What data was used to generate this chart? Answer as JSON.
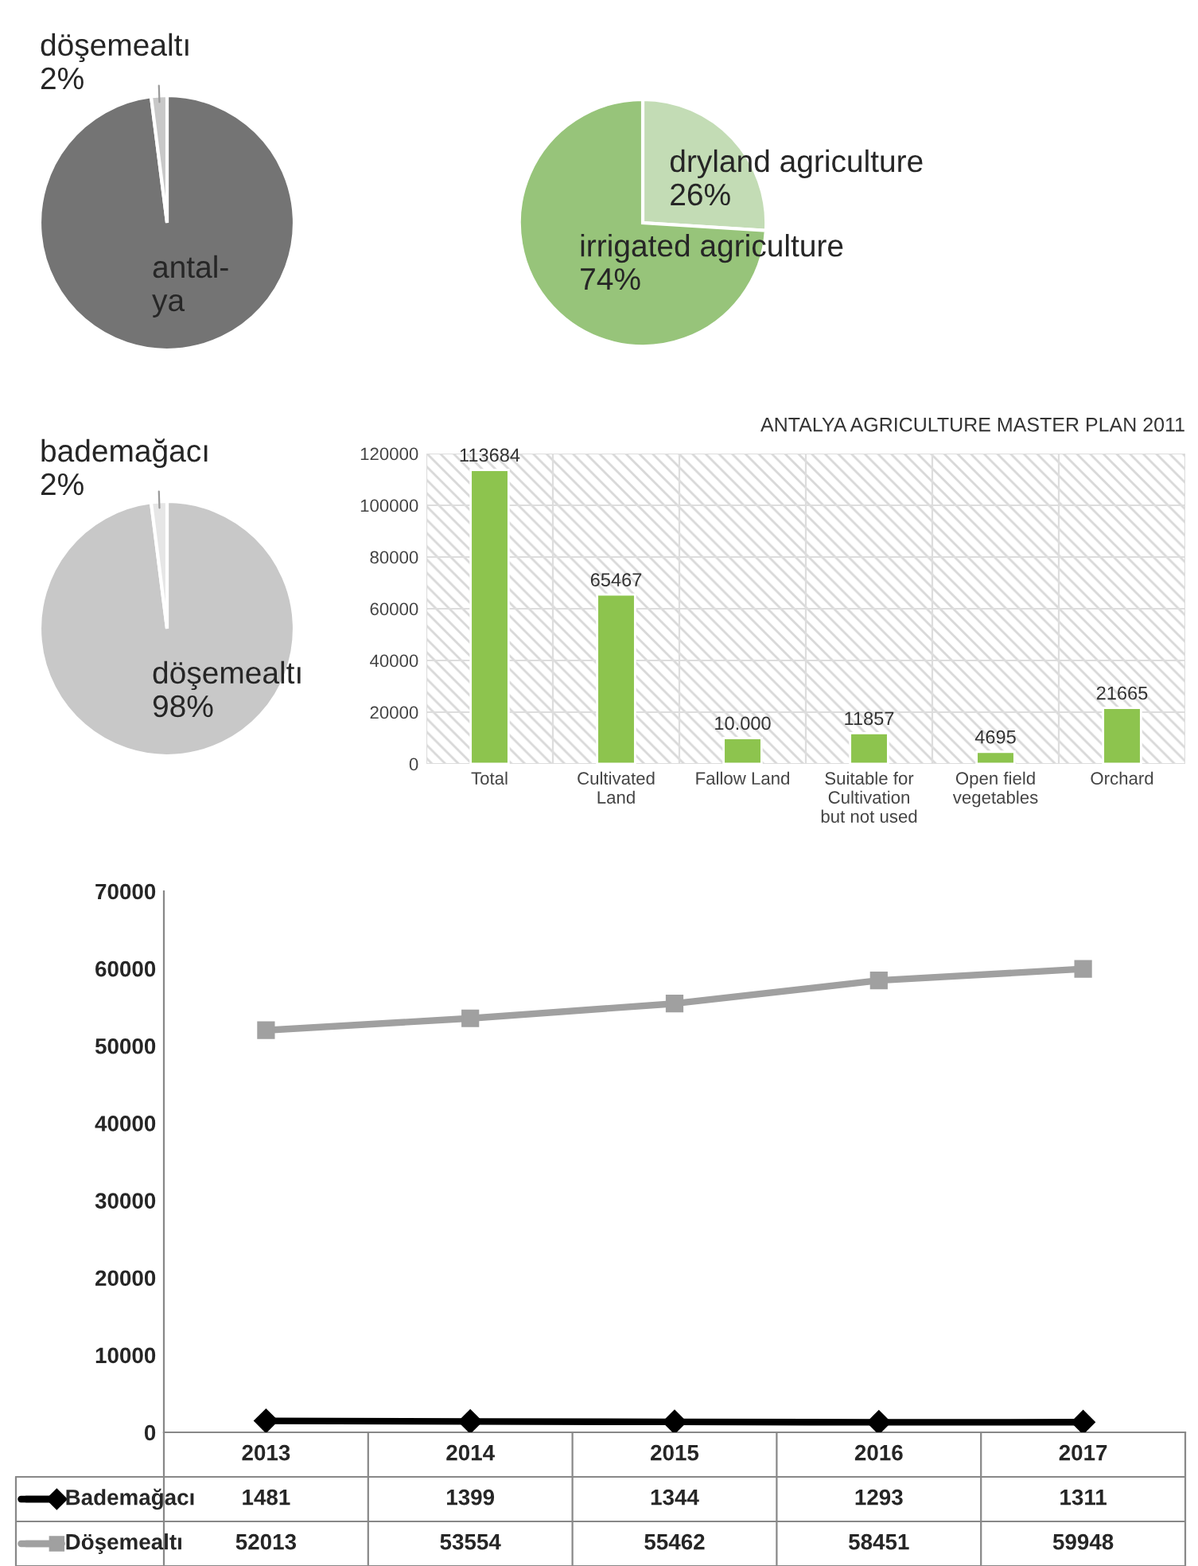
{
  "chart_data": [
    {
      "type": "pie",
      "categories": [
        "antal-\nya",
        "döşemealtı"
      ],
      "values": [
        98,
        2
      ],
      "colors": [
        "#747474",
        "#c8c8c8"
      ],
      "value_labels": [
        null,
        "2%"
      ]
    },
    {
      "type": "pie",
      "categories": [
        "dryland agriculture",
        "irrigated agriculture"
      ],
      "values": [
        26,
        74
      ],
      "colors": [
        "#c3dcb5",
        "#97c47a"
      ],
      "value_labels": [
        "26%",
        "74%"
      ]
    },
    {
      "type": "pie",
      "categories": [
        "döşemealtı",
        "bademağacı"
      ],
      "values": [
        98,
        2
      ],
      "colors": [
        "#c8c8c8",
        "#e6e6e6"
      ],
      "value_labels": [
        "98%",
        "2%"
      ]
    },
    {
      "type": "bar",
      "title": "ANTALYA AGRICULTURE MASTER PLAN 2011",
      "categories": [
        "Total",
        "Cultivated\nLand",
        "Fallow Land",
        "Suitable for\nCultivation\nbut not used",
        "Open field\nvegetables",
        "Orchard"
      ],
      "values": [
        113684,
        65467,
        10000,
        11857,
        4695,
        21665
      ],
      "value_labels": [
        "113684",
        "65467",
        "10.000",
        "11857",
        "4695",
        "21665"
      ],
      "color": "#8dc44e",
      "ylim": [
        0,
        120000
      ],
      "yticks": [
        0,
        20000,
        40000,
        60000,
        80000,
        100000,
        120000
      ],
      "grid": "y"
    },
    {
      "type": "line",
      "categories": [
        "2013",
        "2014",
        "2015",
        "2016",
        "2017"
      ],
      "series": [
        {
          "name": "Bademağacı",
          "color": "#000000",
          "marker": "diamond",
          "values": [
            1481,
            1399,
            1344,
            1293,
            1311
          ]
        },
        {
          "name": "Döşemealtı",
          "color": "#a0a0a0",
          "marker": "square",
          "values": [
            52013,
            53554,
            55462,
            58451,
            59948
          ]
        }
      ],
      "ylim": [
        0,
        70000
      ],
      "yticks": [
        0,
        10000,
        20000,
        30000,
        40000,
        50000,
        60000,
        70000
      ],
      "tick_labels": "y",
      "data_labels": true,
      "legend": "bottom"
    }
  ]
}
